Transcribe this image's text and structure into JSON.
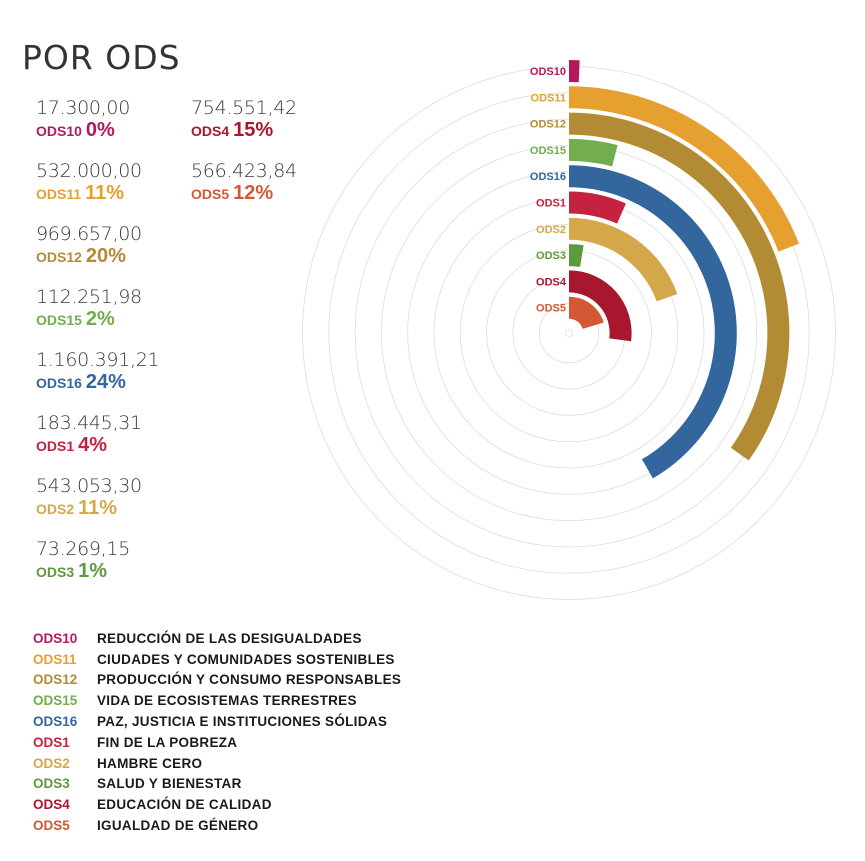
{
  "title": "POR ODS",
  "chart_data": {
    "type": "radial-bar",
    "series": [
      {
        "code": "ODS10",
        "amount": "17.300,00",
        "value": 17300.0,
        "percent": "0%",
        "color": "#b5195b",
        "name": "REDUCCIÓN DE LAS DESIGUALDADES"
      },
      {
        "code": "ODS11",
        "amount": "532.000,00",
        "value": 532000.0,
        "percent": "11%",
        "color": "#e6a02f",
        "name": "CIUDADES Y COMUNIDADES SOSTENIBLES"
      },
      {
        "code": "ODS12",
        "amount": "969.657,00",
        "value": 969657.0,
        "percent": "20%",
        "color": "#b38b35",
        "name": "PRODUCCIÓN Y CONSUMO RESPONSABLES"
      },
      {
        "code": "ODS15",
        "amount": "112.251,98",
        "value": 112251.98,
        "percent": "2%",
        "color": "#72ad4e",
        "name": "VIDA DE ECOSISTEMAS TERRESTRES"
      },
      {
        "code": "ODS16",
        "amount": "1.160.391,21",
        "value": 1160391.21,
        "percent": "24%",
        "color": "#33669c",
        "name": "PAZ, JUSTICIA E INSTITUCIONES SÓLIDAS"
      },
      {
        "code": "ODS1",
        "amount": "183.445,31",
        "value": 183445.31,
        "percent": "4%",
        "color": "#c4223e",
        "name": "FIN DE LA POBREZA"
      },
      {
        "code": "ODS2",
        "amount": "543.053,30",
        "value": 543053.3,
        "percent": "11%",
        "color": "#d4a74a",
        "name": "HAMBRE CERO"
      },
      {
        "code": "ODS3",
        "amount": "73.269,15",
        "value": 73269.15,
        "percent": "1%",
        "color": "#5c9a3f",
        "name": "SALUD Y BIENESTAR"
      },
      {
        "code": "ODS4",
        "amount": "754.551,42",
        "value": 754551.42,
        "percent": "15%",
        "color": "#a8172e",
        "name": "EDUCACIÓN DE CALIDAD"
      },
      {
        "code": "ODS5",
        "amount": "566.423,84",
        "value": 566423.84,
        "percent": "12%",
        "color": "#d35835",
        "name": "IGUALDAD DE GÉNERO"
      }
    ]
  }
}
